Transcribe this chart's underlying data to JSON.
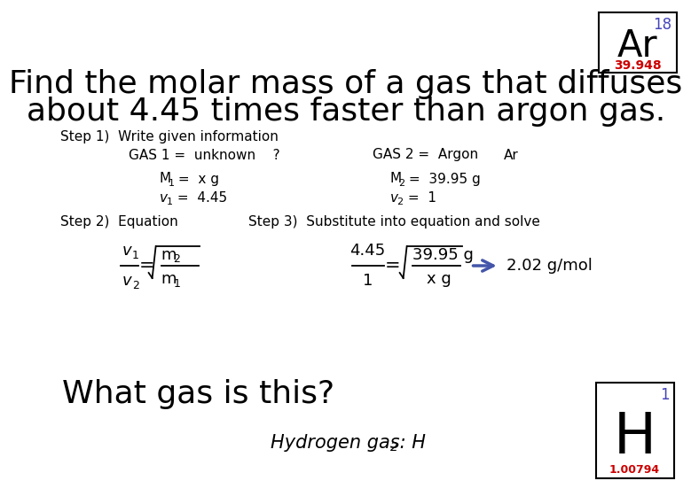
{
  "bg_color": "#ffffff",
  "title_line1": "Find the molar mass of a gas that diffuses",
  "title_line2": "about 4.45 times faster than argon gas.",
  "ar_symbol": "Ar",
  "ar_number": "18",
  "ar_mass": "39.948",
  "h_symbol": "H",
  "h_number": "1",
  "h_mass": "1.00794",
  "step1_label": "Step 1)  Write given information",
  "gas1_line": "GAS 1 =  unknown    ?",
  "gas2_line": "GAS 2 =  Argon",
  "gas2_symbol": "Ar",
  "m1_val": " =  x g",
  "m2_val": " =  39.95 g",
  "v1_val": " =  4.45",
  "v2_val": " =  1",
  "step2_label": "Step 2)  Equation",
  "step3_label": "Step 3)  Substitute into equation and solve",
  "result": "2.02 g/mol",
  "what_gas": "What gas is this?",
  "hydrogen_text": "Hydrogen gas: H",
  "hydrogen_sub": "2",
  "arrow_color": "#4455aa",
  "title_fontsize": 26,
  "body_fontsize": 11,
  "eq_fontsize": 13
}
